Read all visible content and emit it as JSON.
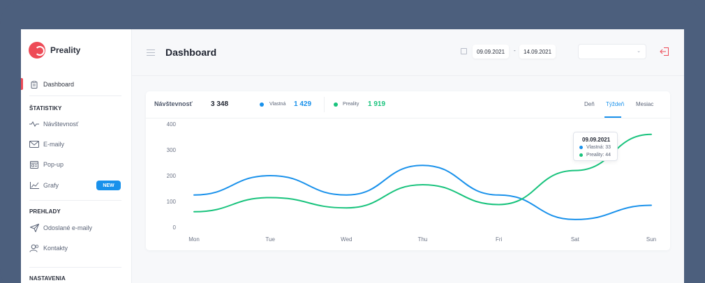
{
  "app": {
    "name": "Preality"
  },
  "sidebar": {
    "dashboard": {
      "label": "Dashboard",
      "icon": "clipboard-icon"
    },
    "sections": [
      {
        "title": "ŠTATISTIKY"
      },
      {
        "title": "PREHLADY"
      },
      {
        "title": "NASTAVENIA"
      }
    ],
    "items": [
      {
        "label": "Návštevnosť",
        "icon": "pulse-icon"
      },
      {
        "label": "E-maily",
        "icon": "mail-icon"
      },
      {
        "label": "Pop-up",
        "icon": "popup-icon"
      },
      {
        "label": "Grafy",
        "icon": "chart-icon",
        "badge": "NEW"
      },
      {
        "label": "Odoslané e-maily",
        "icon": "send-icon"
      },
      {
        "label": "Kontakty",
        "icon": "contacts-icon"
      }
    ]
  },
  "header": {
    "title": "Dashboard",
    "date_from": "09.09.2021",
    "date_to": "14.09.2021",
    "date_separator": "-",
    "select_value": ""
  },
  "stats": {
    "label": "Návštevnosť",
    "total": "3 348",
    "series": [
      {
        "name": "Vlastná",
        "value": "1 429",
        "color": "#1991eb"
      },
      {
        "name": "Preality",
        "value": "1 919",
        "color": "#19c37d"
      }
    ],
    "tabs": [
      {
        "label": "Deň",
        "active": false
      },
      {
        "label": "Týždeň",
        "active": true
      },
      {
        "label": "Mesiac",
        "active": false
      }
    ]
  },
  "chart_data": {
    "type": "line",
    "categories": [
      "Mon",
      "Tue",
      "Wed",
      "Thu",
      "Fri",
      "Sat",
      "Sun"
    ],
    "y_ticks": [
      "400",
      "300",
      "200",
      "100",
      "0"
    ],
    "ylim": [
      0,
      400
    ],
    "grid": false,
    "series": [
      {
        "name": "Vlastná",
        "color": "#1991eb",
        "values": [
          125,
          200,
          125,
          240,
          125,
          30,
          85
        ]
      },
      {
        "name": "Preality",
        "color": "#19c37d",
        "values": [
          60,
          115,
          75,
          165,
          88,
          220,
          360
        ]
      }
    ],
    "tooltip": {
      "date": "09.09.2021",
      "rows": [
        {
          "label": "Vlastná: 33",
          "color": "#1991eb"
        },
        {
          "label": "Preality: 44",
          "color": "#19c37d"
        }
      ]
    }
  }
}
